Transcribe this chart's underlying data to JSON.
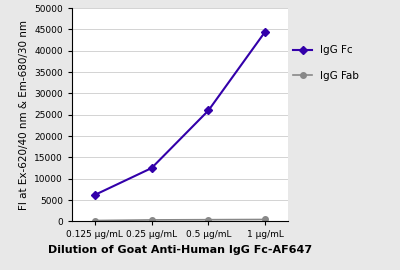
{
  "x_labels": [
    "0.125 μg/mL",
    "0.25 μg/mL",
    "0.5 μg/mL",
    "1 μg/mL"
  ],
  "x_positions": [
    0,
    1,
    2,
    3
  ],
  "igg_fc_values": [
    6200,
    12500,
    26000,
    44500
  ],
  "igg_fab_values": [
    200,
    350,
    400,
    450
  ],
  "igg_fc_color": "#3300aa",
  "igg_fab_color": "#888888",
  "ylabel": "FI at Ex-620/40 nm & Em-680/30 nm",
  "xlabel": "Dilution of Goat Anti-Human IgG Fc-AF647",
  "ylim": [
    0,
    50000
  ],
  "yticks": [
    0,
    5000,
    10000,
    15000,
    20000,
    25000,
    30000,
    35000,
    40000,
    45000,
    50000
  ],
  "ytick_labels": [
    "0",
    "5000",
    "10000",
    "15000",
    "20000",
    "25000",
    "30000",
    "35000",
    "40000",
    "45000",
    "50000"
  ],
  "legend_labels": [
    "IgG Fc",
    "IgG Fab"
  ],
  "axis_fontsize": 7.5,
  "tick_fontsize": 6.5,
  "legend_fontsize": 7.5,
  "xlabel_fontsize": 8,
  "background_color": "#e8e8e8",
  "plot_background": "#ffffff",
  "grid_color": "#cccccc"
}
